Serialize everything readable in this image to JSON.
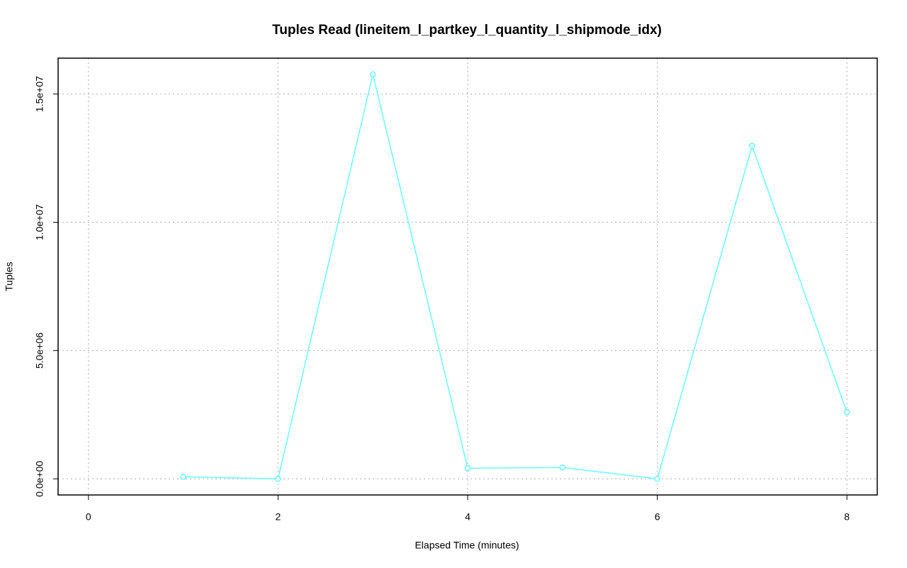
{
  "chart_data": {
    "type": "line",
    "title": "Tuples Read (lineitem_l_partkey_l_quantity_l_shipmode_idx)",
    "x_label": "Elapsed Time (minutes)",
    "y_label": "Tuples",
    "x": [
      1,
      2,
      3,
      4,
      5,
      6,
      7,
      8
    ],
    "series": [
      {
        "name": "Tuples Read",
        "color": "#66ffff",
        "values": [
          80000,
          0,
          15770000,
          414000,
          442000,
          0,
          12980000,
          2597000
        ]
      }
    ],
    "xlim": [
      -0.32,
      8.32
    ],
    "xticks": [
      0,
      2,
      4,
      6,
      8
    ],
    "ylim": [
      -628000,
      16398000
    ],
    "yticks": [
      {
        "value": 0,
        "label": "0.0e+00"
      },
      {
        "value": 5000000,
        "label": "5.0e+06"
      },
      {
        "value": 10000000,
        "label": "1.0e+07"
      },
      {
        "value": 15000000,
        "label": "1.5e+07"
      }
    ],
    "grid": true
  }
}
